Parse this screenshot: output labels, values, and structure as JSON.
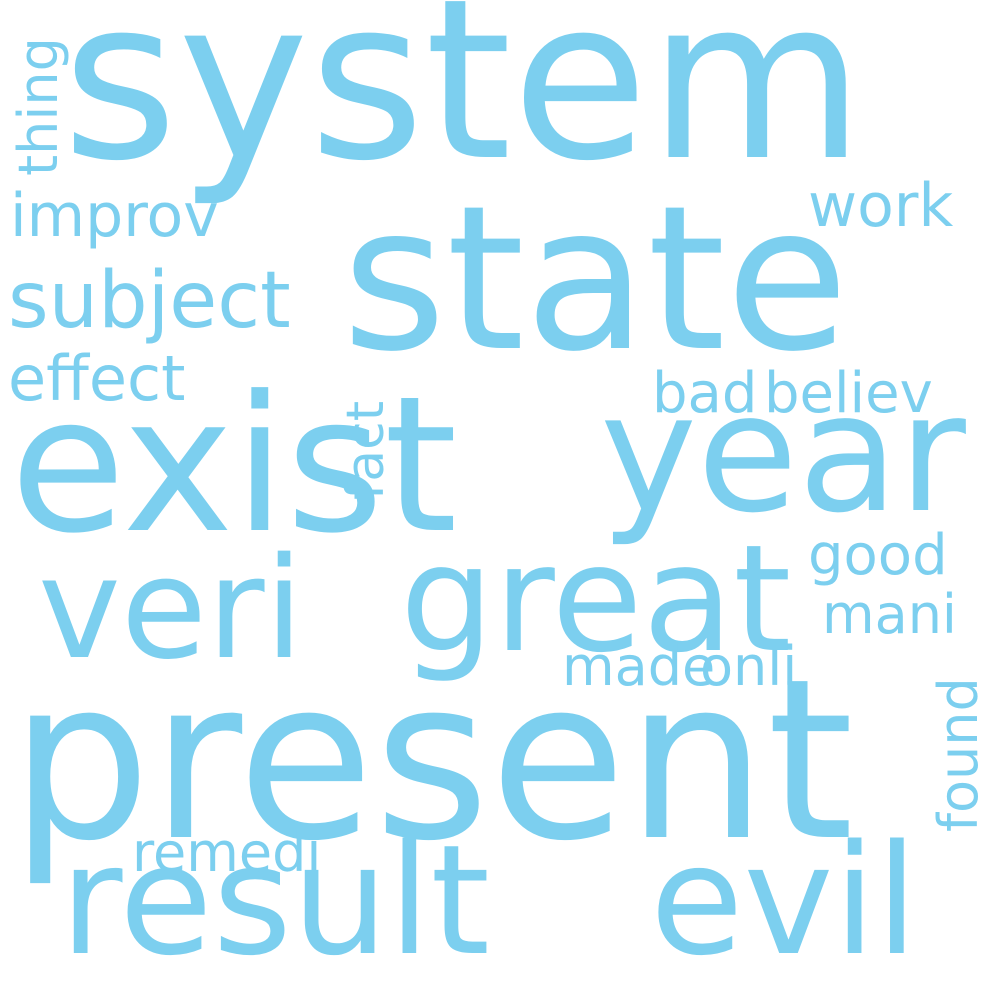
{
  "cloud": {
    "color": "#7ccfef",
    "background": "#ffffff",
    "words": {
      "system": "system",
      "state": "state",
      "exist": "exist",
      "year": "year",
      "veri": "veri",
      "great": "great",
      "present": "present",
      "result": "result",
      "evil": "evil",
      "thing": "thing",
      "improv": "improv",
      "subject": "subject",
      "effect": "effect",
      "work": "work",
      "bad": "bad",
      "believ": "believ",
      "fact": "fact",
      "good": "good",
      "mani": "mani",
      "made": "made",
      "onli": "onli",
      "found": "found",
      "remedi": "remedi"
    }
  }
}
